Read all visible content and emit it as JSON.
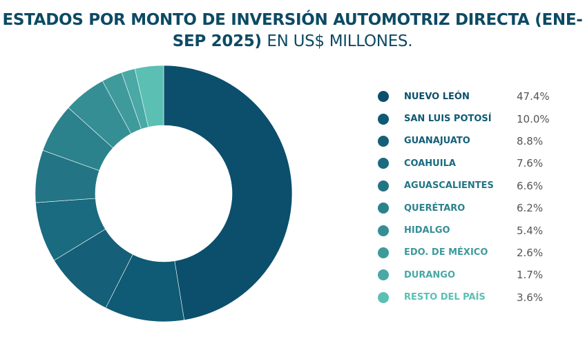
{
  "chart_data": {
    "type": "pie",
    "donut": true,
    "title": "ESTADOS POR MONTO DE INVERSIÓN AUTOMOTRIZ DIRECTA (ENE-SEP 2025)",
    "subtitle": "EN US$ MILLONES.",
    "legend_position": "right",
    "categories": [
      "NUEVO LEÓN",
      "SAN LUIS POTOSÍ",
      "GUANAJUATO",
      "COAHUILA",
      "AGUASCALIENTES",
      "QUERÉTARO",
      "HIDALGO",
      "EDO. DE MÉXICO",
      "DURANGO",
      "RESTO DEL PAÍS"
    ],
    "values": [
      47.4,
      10.0,
      8.8,
      7.6,
      6.6,
      6.2,
      5.4,
      2.6,
      1.7,
      3.6
    ],
    "labels": [
      "47.4%",
      "10.0%",
      "8.8%",
      "7.6%",
      "6.6%",
      "6.2%",
      "5.4%",
      "2.6%",
      "1.7%",
      "3.6%"
    ],
    "colors": [
      "#0b4f6c",
      "#0f5a74",
      "#155f78",
      "#1a6a80",
      "#237585",
      "#2b818c",
      "#368e95",
      "#3f9a9c",
      "#4aa8a5",
      "#5bbfb3"
    ]
  }
}
